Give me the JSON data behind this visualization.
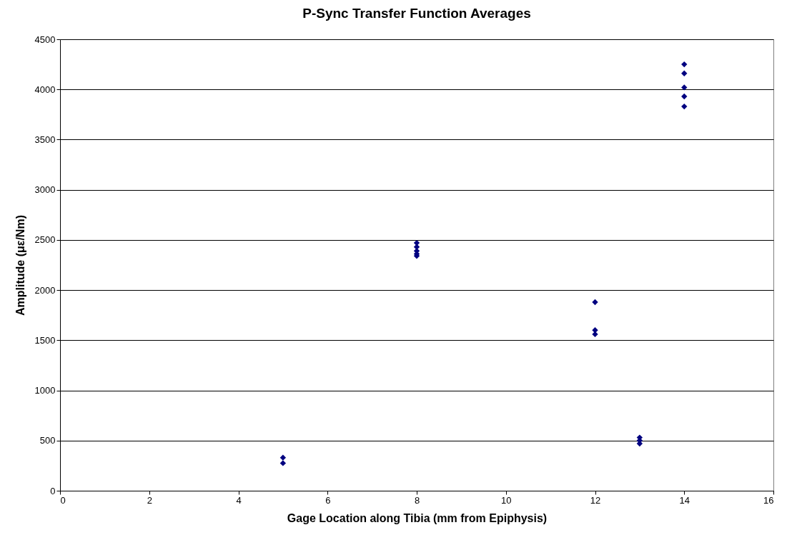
{
  "chart_data": {
    "type": "scatter",
    "title": "P-Sync Transfer Function Averages",
    "xlabel": "Gage Location along Tibia (mm from Epiphysis)",
    "ylabel": "Amplitude (με/Nm)",
    "x": [
      5,
      5,
      8,
      8,
      8,
      8,
      8,
      12,
      12,
      12,
      13,
      13,
      13,
      14,
      14,
      14,
      14,
      14
    ],
    "series": [
      {
        "color": "#000080",
        "values": [
          330,
          275,
          2470,
          2430,
          2390,
          2360,
          2340,
          1880,
          1600,
          1560,
          530,
          500,
          470,
          4250,
          4160,
          4020,
          3930,
          3830
        ]
      }
    ],
    "xlim": [
      0,
      16
    ],
    "xticks": [
      0,
      2,
      4,
      6,
      8,
      10,
      12,
      14,
      16
    ],
    "ylim": [
      0,
      4500
    ],
    "yticks": [
      0,
      500,
      1000,
      1500,
      2000,
      2500,
      3000,
      3500,
      4000,
      4500
    ],
    "grid": "y",
    "marker": "diamond"
  }
}
